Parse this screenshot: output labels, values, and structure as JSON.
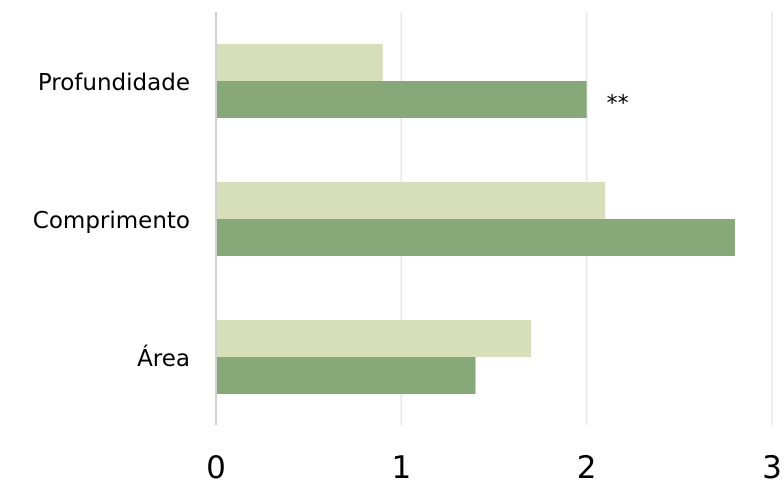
{
  "chart_data": {
    "type": "bar",
    "orientation": "horizontal",
    "title": "",
    "xlabel": "",
    "ylabel": "",
    "categories": [
      "Profundidade",
      "Comprimento",
      "Área"
    ],
    "series": [
      {
        "color": "#d6dfb9",
        "values": [
          0.9,
          2.1,
          1.7
        ]
      },
      {
        "color": "#87a878",
        "values": [
          2.0,
          2.8,
          1.4
        ]
      }
    ],
    "xlim": [
      0,
      3
    ],
    "xticks": [
      "0",
      "1",
      "2",
      "3"
    ],
    "grid": "vertical",
    "legend": "none",
    "annotations": [
      {
        "category": "Profundidade",
        "series": 1,
        "text": "**"
      }
    ]
  }
}
